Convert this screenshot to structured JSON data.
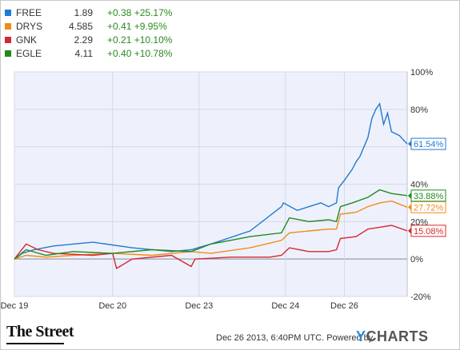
{
  "legend": [
    {
      "symbol": "FREE",
      "price": "1.89",
      "change": "+0.38",
      "pct": "+25.17%",
      "color": "#1f7ad4"
    },
    {
      "symbol": "DRYS",
      "price": "4.585",
      "change": "+0.41",
      "pct": "+9.95%",
      "color": "#f28a1a"
    },
    {
      "symbol": "GNK",
      "price": "2.29",
      "change": "+0.21",
      "pct": "+10.10%",
      "color": "#d6282e"
    },
    {
      "symbol": "EGLE",
      "price": "4.11",
      "change": "+0.40",
      "pct": "+10.78%",
      "color": "#1f8a1f"
    }
  ],
  "chart_data": {
    "type": "line",
    "ylim": [
      -20,
      100
    ],
    "yticks": [
      "100%",
      "80%",
      "40%",
      "20%",
      "0%",
      "-20%"
    ],
    "xticks": [
      "Dec 19",
      "Dec 20",
      "Dec 23",
      "Dec 24",
      "Dec 26"
    ],
    "grid": true,
    "legend": "top-left",
    "series": [
      {
        "name": "FREE",
        "color": "#1f7ad4",
        "end_label": "61.54%",
        "x": [
          0,
          0.02,
          0.05,
          0.1,
          0.2,
          0.3,
          0.4,
          0.45,
          0.5,
          0.6,
          0.68,
          0.685,
          0.72,
          0.75,
          0.78,
          0.8,
          0.82,
          0.825,
          0.84,
          0.86,
          0.87,
          0.88,
          0.9,
          0.91,
          0.92,
          0.93,
          0.94,
          0.95,
          0.96,
          0.98,
          1.0
        ],
        "values": [
          0,
          3,
          5,
          7,
          9,
          6,
          4,
          5,
          8,
          15,
          28,
          30,
          26,
          28,
          30,
          28,
          30,
          38,
          42,
          48,
          52,
          55,
          65,
          75,
          80,
          83,
          72,
          78,
          68,
          66,
          61.54
        ]
      },
      {
        "name": "DRYS",
        "color": "#f28a1a",
        "end_label": "27.72%",
        "x": [
          0,
          0.03,
          0.08,
          0.15,
          0.25,
          0.35,
          0.45,
          0.5,
          0.6,
          0.68,
          0.7,
          0.75,
          0.8,
          0.82,
          0.83,
          0.87,
          0.9,
          0.93,
          0.96,
          1.0
        ],
        "values": [
          0,
          2,
          1,
          2,
          3,
          2,
          4,
          3,
          6,
          10,
          14,
          15,
          16,
          16,
          24,
          25,
          28,
          30,
          31,
          27.72
        ]
      },
      {
        "name": "GNK",
        "color": "#d6282e",
        "end_label": "15.08%",
        "x": [
          0,
          0.03,
          0.06,
          0.1,
          0.2,
          0.25,
          0.26,
          0.3,
          0.4,
          0.45,
          0.46,
          0.55,
          0.65,
          0.68,
          0.7,
          0.75,
          0.8,
          0.82,
          0.83,
          0.87,
          0.9,
          0.93,
          0.96,
          1.0
        ],
        "values": [
          0,
          8,
          5,
          3,
          2,
          3,
          -5,
          0,
          2,
          -4,
          0,
          1,
          1,
          2,
          6,
          4,
          4,
          5,
          11,
          12,
          16,
          17,
          18,
          15.08
        ]
      },
      {
        "name": "EGLE",
        "color": "#1f8a1f",
        "end_label": "33.88%",
        "x": [
          0,
          0.03,
          0.08,
          0.15,
          0.25,
          0.35,
          0.45,
          0.5,
          0.55,
          0.6,
          0.68,
          0.7,
          0.75,
          0.8,
          0.82,
          0.83,
          0.86,
          0.9,
          0.93,
          0.96,
          1.0
        ],
        "values": [
          0,
          5,
          2,
          4,
          3,
          5,
          4,
          8,
          10,
          12,
          14,
          22,
          20,
          21,
          20,
          28,
          30,
          33,
          37,
          35,
          33.88
        ]
      }
    ]
  },
  "footer": {
    "logo": "The Street",
    "timestamp": "Dec 26 2013, 6:40PM UTC.",
    "powered": "Powered by",
    "brand_y": "Y",
    "brand_rest": "CHARTS"
  }
}
